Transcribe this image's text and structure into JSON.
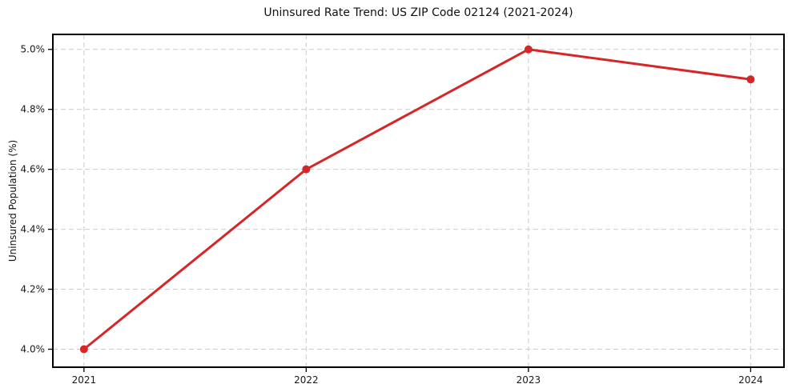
{
  "chart_data": {
    "type": "line",
    "title": "Uninsured Rate Trend: US ZIP Code 02124 (2021-2024)",
    "xlabel": "",
    "ylabel": "Uninsured Population (%)",
    "x": [
      2021,
      2022,
      2023,
      2024
    ],
    "xtick_labels": [
      "2021",
      "2022",
      "2023",
      "2024"
    ],
    "series": [
      {
        "name": "Uninsured rate",
        "values": [
          4.0,
          4.6,
          5.0,
          4.9
        ],
        "color": "#d62728"
      }
    ],
    "yticks": [
      4.0,
      4.2,
      4.4,
      4.6,
      4.8,
      5.0
    ],
    "ytick_labels": [
      "4.0%",
      "4.2%",
      "4.4%",
      "4.6%",
      "4.8%",
      "5.0%"
    ],
    "ylim": [
      3.94,
      5.05
    ],
    "xlim": [
      2020.86,
      2024.15
    ],
    "grid": true,
    "grid_style": "dashed",
    "legend": false,
    "colors": {
      "line": "#d62728",
      "grid": "#cccccc",
      "spine": "#000000",
      "text": "#1a1a1a"
    }
  }
}
